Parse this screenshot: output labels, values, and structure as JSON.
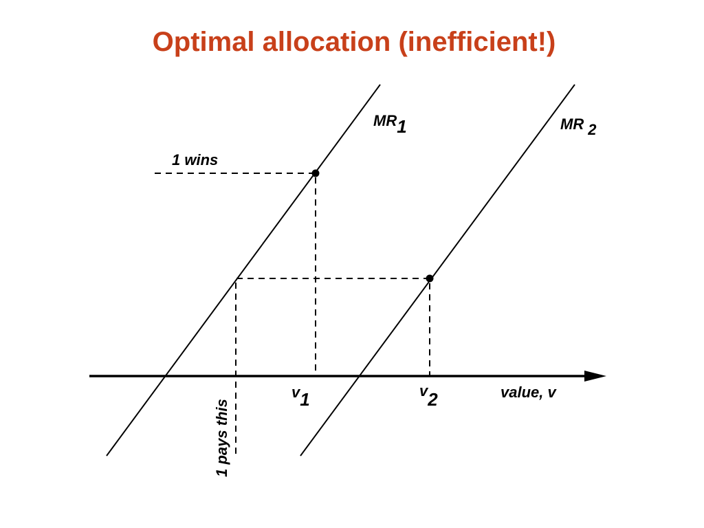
{
  "title": "Optimal allocation (inefficient!)",
  "curves": [
    {
      "label": "MR",
      "subscript": "1"
    },
    {
      "label": "MR",
      "subscript": "2"
    }
  ],
  "annotations": {
    "wins": "1 wins",
    "pays": "1 pays this"
  },
  "axis": {
    "label": "value, v",
    "points": [
      {
        "label": "v",
        "subscript": "1"
      },
      {
        "label": "v",
        "subscript": "2"
      }
    ]
  }
}
